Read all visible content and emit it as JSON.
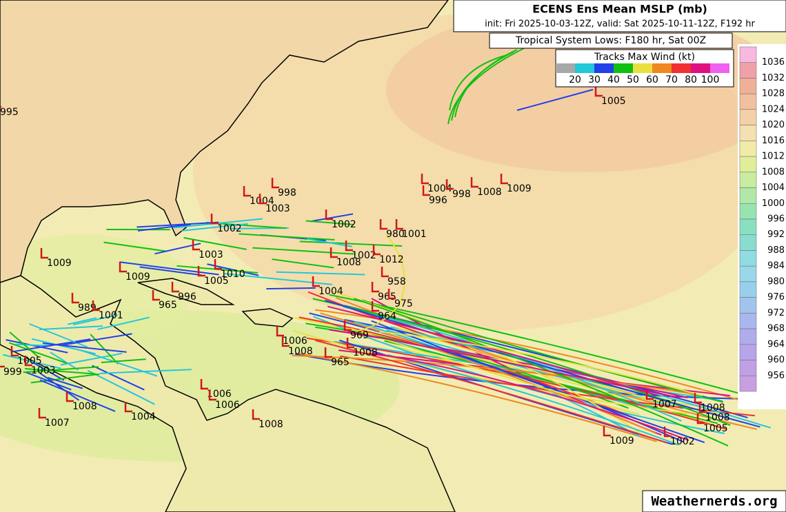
{
  "header": {
    "title": "ECENS Ens Mean MSLP (mb)",
    "subtitle": "init: Fri 2025-10-03-12Z, valid: Sat 2025-10-11-12Z, F192 hr"
  },
  "tropical_lows_label": "Tropical System Lows: F180 hr, Sat 00Z",
  "wind_legend": {
    "title": "Tracks Max Wind (kt)",
    "colors": [
      "#a8a8a8",
      "#22c8d8",
      "#2040e8",
      "#10c010",
      "#e8e040",
      "#f08820",
      "#f03030",
      "#e01080",
      "#f060f0"
    ],
    "labels": [
      "20",
      "30",
      "40",
      "50",
      "60",
      "70",
      "80",
      "100"
    ]
  },
  "colorbar": {
    "labels": [
      "1036",
      "1032",
      "1028",
      "1024",
      "1020",
      "1016",
      "1012",
      "1008",
      "1004",
      "1000",
      "996",
      "992",
      "988",
      "984",
      "980",
      "976",
      "972",
      "968",
      "964",
      "960",
      "956"
    ],
    "colors": [
      "#f8b8e0",
      "#f0a0a8",
      "#f0b098",
      "#f0c0a0",
      "#f4d0a8",
      "#f4e0b0",
      "#f0eca8",
      "#e0ee98",
      "#c8eca0",
      "#b0e8a8",
      "#98e4b0",
      "#88e0c0",
      "#88dcd0",
      "#90dce0",
      "#98d8e8",
      "#98d0ec",
      "#a0c4ec",
      "#a8b8ec",
      "#b0acec",
      "#b8a4e8",
      "#c0a0e4",
      "#c8a0e0"
    ]
  },
  "lows": [
    "995",
    "1004",
    "998",
    "1003",
    "1002",
    "1002",
    "980",
    "1001",
    "1009",
    "1009",
    "1003",
    "1005",
    "1010",
    "965",
    "996",
    "989",
    "1001",
    "1008",
    "1002",
    "1012",
    "958",
    "965",
    "975",
    "1004",
    "964",
    "969",
    "1006",
    "1008",
    "965",
    "1008",
    "1005",
    "999",
    "1003",
    "1008",
    "1007",
    "1004",
    "1006",
    "1006",
    "1008",
    "1004",
    "998",
    "1008",
    "1009",
    "996",
    "1005",
    "1007",
    "1008",
    "1008",
    "1005",
    "1009",
    "1002"
  ],
  "watermark": "Weathernerds.org"
}
